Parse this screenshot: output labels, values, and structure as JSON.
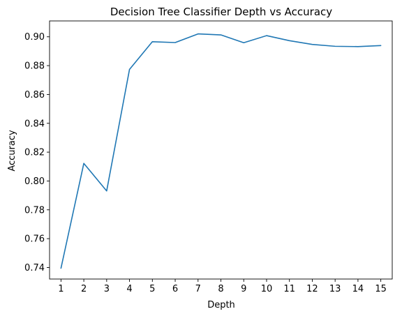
{
  "chart_data": {
    "type": "line",
    "title": "Decision Tree Classifier Depth vs Accuracy",
    "xlabel": "Depth",
    "ylabel": "Accuracy",
    "x": [
      1,
      2,
      3,
      4,
      5,
      6,
      7,
      8,
      9,
      10,
      11,
      12,
      13,
      14,
      15
    ],
    "series": [
      {
        "values": [
          0.7395,
          0.8122,
          0.7931,
          0.8774,
          0.8966,
          0.896,
          0.902,
          0.9013,
          0.8959,
          0.9008,
          0.8973,
          0.8947,
          0.8934,
          0.8932,
          0.8939
        ],
        "color": "#1f77b4"
      }
    ],
    "xlim": [
      0.5,
      15.5
    ],
    "ylim": [
      0.732,
      0.911
    ],
    "x_ticks": [
      "1",
      "2",
      "3",
      "4",
      "5",
      "6",
      "7",
      "8",
      "9",
      "10",
      "11",
      "12",
      "13",
      "14",
      "15"
    ],
    "y_ticks": [
      "0.74",
      "0.76",
      "0.78",
      "0.80",
      "0.82",
      "0.84",
      "0.86",
      "0.88",
      "0.90"
    ],
    "grid": false,
    "legend": "none"
  }
}
